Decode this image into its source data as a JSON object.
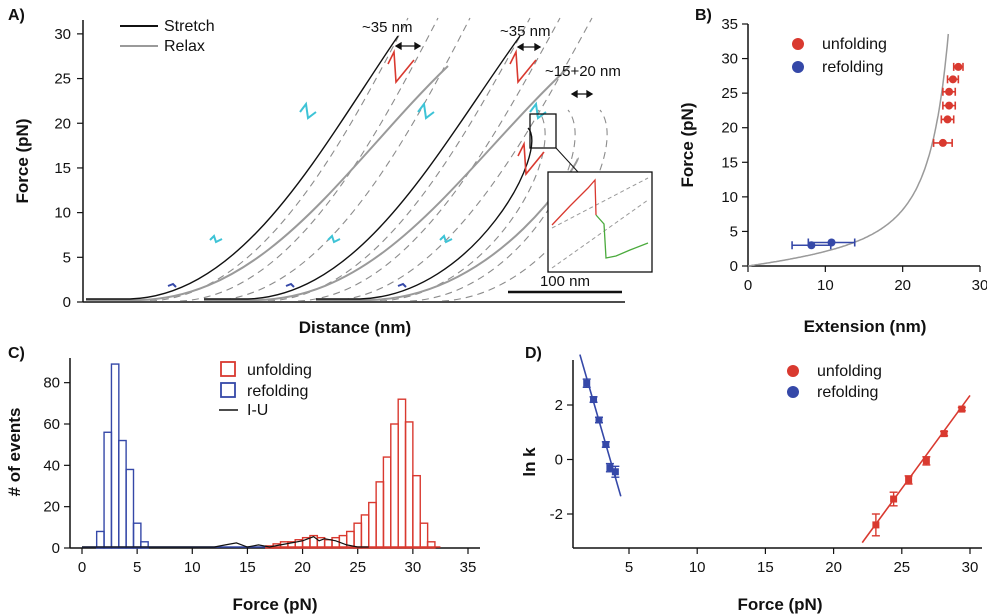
{
  "colors": {
    "stretch": "#111111",
    "relax": "#9a9a9a",
    "dashed": "#8c8c8c",
    "unfold": "#d9392f",
    "refold": "#3548a8",
    "intermediate": "#3dc3d6",
    "green": "#4aaa3c",
    "fit": "#9a9a9a"
  },
  "chart_data": [
    {
      "panel": "A)",
      "type": "line",
      "xlabel": "Distance (nm)",
      "ylabel": "Force (pN)",
      "ylim": [
        0,
        32
      ],
      "yticks": [
        "0",
        "5",
        "10",
        "15",
        "20",
        "25",
        "30"
      ],
      "legend": {
        "placement": "top-left",
        "entries": [
          "Stretch",
          "Relax"
        ]
      },
      "series": [
        {
          "name": "Stretch",
          "traces": 3,
          "peak_force": 30
        },
        {
          "name": "Relax",
          "traces": 3
        }
      ],
      "annotations": [
        "~35 nm",
        "~35 nm",
        "~15+20 nm"
      ],
      "scale_bar": "100 nm"
    },
    {
      "panel": "B)",
      "type": "scatter",
      "xlabel": "Extension (nm)",
      "ylabel": "Force (pN)",
      "xlim": [
        0,
        30
      ],
      "ylim": [
        0,
        35
      ],
      "xticks": [
        "0",
        "10",
        "20",
        "30"
      ],
      "yticks": [
        "0",
        "5",
        "10",
        "15",
        "20",
        "25",
        "30",
        "35"
      ],
      "legend": {
        "placement": "top-center",
        "entries": [
          "unfolding",
          "refolding"
        ]
      },
      "series": [
        {
          "name": "unfolding",
          "points": [
            {
              "x": 25.2,
              "y": 17.8,
              "xerr": 1.2
            },
            {
              "x": 25.8,
              "y": 21.2,
              "xerr": 0.8
            },
            {
              "x": 26.0,
              "y": 23.2,
              "xerr": 0.8
            },
            {
              "x": 26.0,
              "y": 25.2,
              "xerr": 0.8
            },
            {
              "x": 26.5,
              "y": 27.0,
              "xerr": 0.7
            },
            {
              "x": 27.2,
              "y": 28.8,
              "xerr": 0.6
            }
          ]
        },
        {
          "name": "refolding",
          "points": [
            {
              "x": 8.2,
              "y": 3.0,
              "xerr": 2.5
            },
            {
              "x": 10.8,
              "y": 3.4,
              "xerr": 3.0
            }
          ]
        }
      ],
      "fit_curve": "worm-like chain"
    },
    {
      "panel": "C)",
      "type": "bar",
      "xlabel": "Force (pN)",
      "ylabel": "# of events",
      "xlim": [
        0,
        35
      ],
      "ylim": [
        0,
        90
      ],
      "xticks": [
        "0",
        "5",
        "10",
        "15",
        "20",
        "25",
        "30",
        "35"
      ],
      "yticks": [
        "0",
        "20",
        "40",
        "60",
        "80"
      ],
      "bin_width": 0.67,
      "legend": {
        "placement": "top-center",
        "entries": [
          "unfolding",
          "refolding",
          "I-U"
        ]
      },
      "series": [
        {
          "name": "refolding",
          "bin_starts": [
            1.33,
            2.0,
            2.67,
            3.33,
            4.0,
            4.67,
            5.33
          ],
          "values": [
            8,
            56,
            89,
            52,
            38,
            12,
            3
          ]
        },
        {
          "name": "unfolding",
          "bin_starts": [
            16.67,
            17.33,
            18.0,
            18.67,
            19.33,
            20.0,
            20.67,
            21.33,
            22.0,
            22.67,
            23.33,
            24.0,
            24.67,
            25.33,
            26.0,
            26.67,
            27.33,
            28.0,
            28.67,
            29.33,
            30.0,
            30.67,
            31.33
          ],
          "values": [
            1,
            2,
            3,
            3,
            4,
            5,
            6,
            5,
            4,
            5,
            6,
            8,
            12,
            16,
            22,
            32,
            44,
            60,
            72,
            61,
            35,
            12,
            3
          ]
        },
        {
          "name": "I-U",
          "x": [
            0,
            8,
            10,
            12,
            13,
            14,
            15,
            16,
            17,
            18,
            19,
            20,
            21,
            21.5,
            22,
            23,
            24,
            25,
            26
          ],
          "values": [
            0,
            0,
            0,
            0,
            1,
            2,
            0,
            1,
            0,
            1,
            2,
            3,
            5,
            3,
            4,
            3,
            1,
            0,
            0
          ]
        }
      ]
    },
    {
      "panel": "D)",
      "type": "scatter",
      "xlabel": "Force (pN)",
      "ylabel": "ln k",
      "xlim": [
        1,
        30
      ],
      "ylim": [
        -3.2,
        3.8
      ],
      "xticks": [
        "5",
        "10",
        "15",
        "20",
        "25",
        "30"
      ],
      "yticks": [
        "-2",
        "0",
        "2"
      ],
      "legend": {
        "placement": "top-right",
        "entries": [
          "unfolding",
          "refolding"
        ]
      },
      "series": [
        {
          "name": "unfolding",
          "points": [
            {
              "x": 23.1,
              "y": -2.4,
              "yerr": 0.4
            },
            {
              "x": 24.4,
              "y": -1.45,
              "yerr": 0.25
            },
            {
              "x": 25.5,
              "y": -0.75,
              "yerr": 0.15
            },
            {
              "x": 26.8,
              "y": -0.05,
              "yerr": 0.15
            },
            {
              "x": 28.1,
              "y": 0.95,
              "yerr": 0.08
            },
            {
              "x": 29.4,
              "y": 1.85,
              "yerr": 0.06
            }
          ],
          "fit": {
            "x": [
              22.1,
              30.0
            ],
            "y": [
              -3.05,
              2.35
            ]
          }
        },
        {
          "name": "refolding",
          "points": [
            {
              "x": 1.9,
              "y": 2.8,
              "yerr": 0.15
            },
            {
              "x": 2.4,
              "y": 2.2,
              "yerr": 0.1
            },
            {
              "x": 2.8,
              "y": 1.45,
              "yerr": 0.1
            },
            {
              "x": 3.3,
              "y": 0.55,
              "yerr": 0.1
            },
            {
              "x": 3.6,
              "y": -0.3,
              "yerr": 0.15
            },
            {
              "x": 4.0,
              "y": -0.45,
              "yerr": 0.2
            }
          ],
          "fit": {
            "x": [
              1.4,
              4.4
            ],
            "y": [
              3.85,
              -1.35
            ]
          }
        }
      ]
    }
  ]
}
